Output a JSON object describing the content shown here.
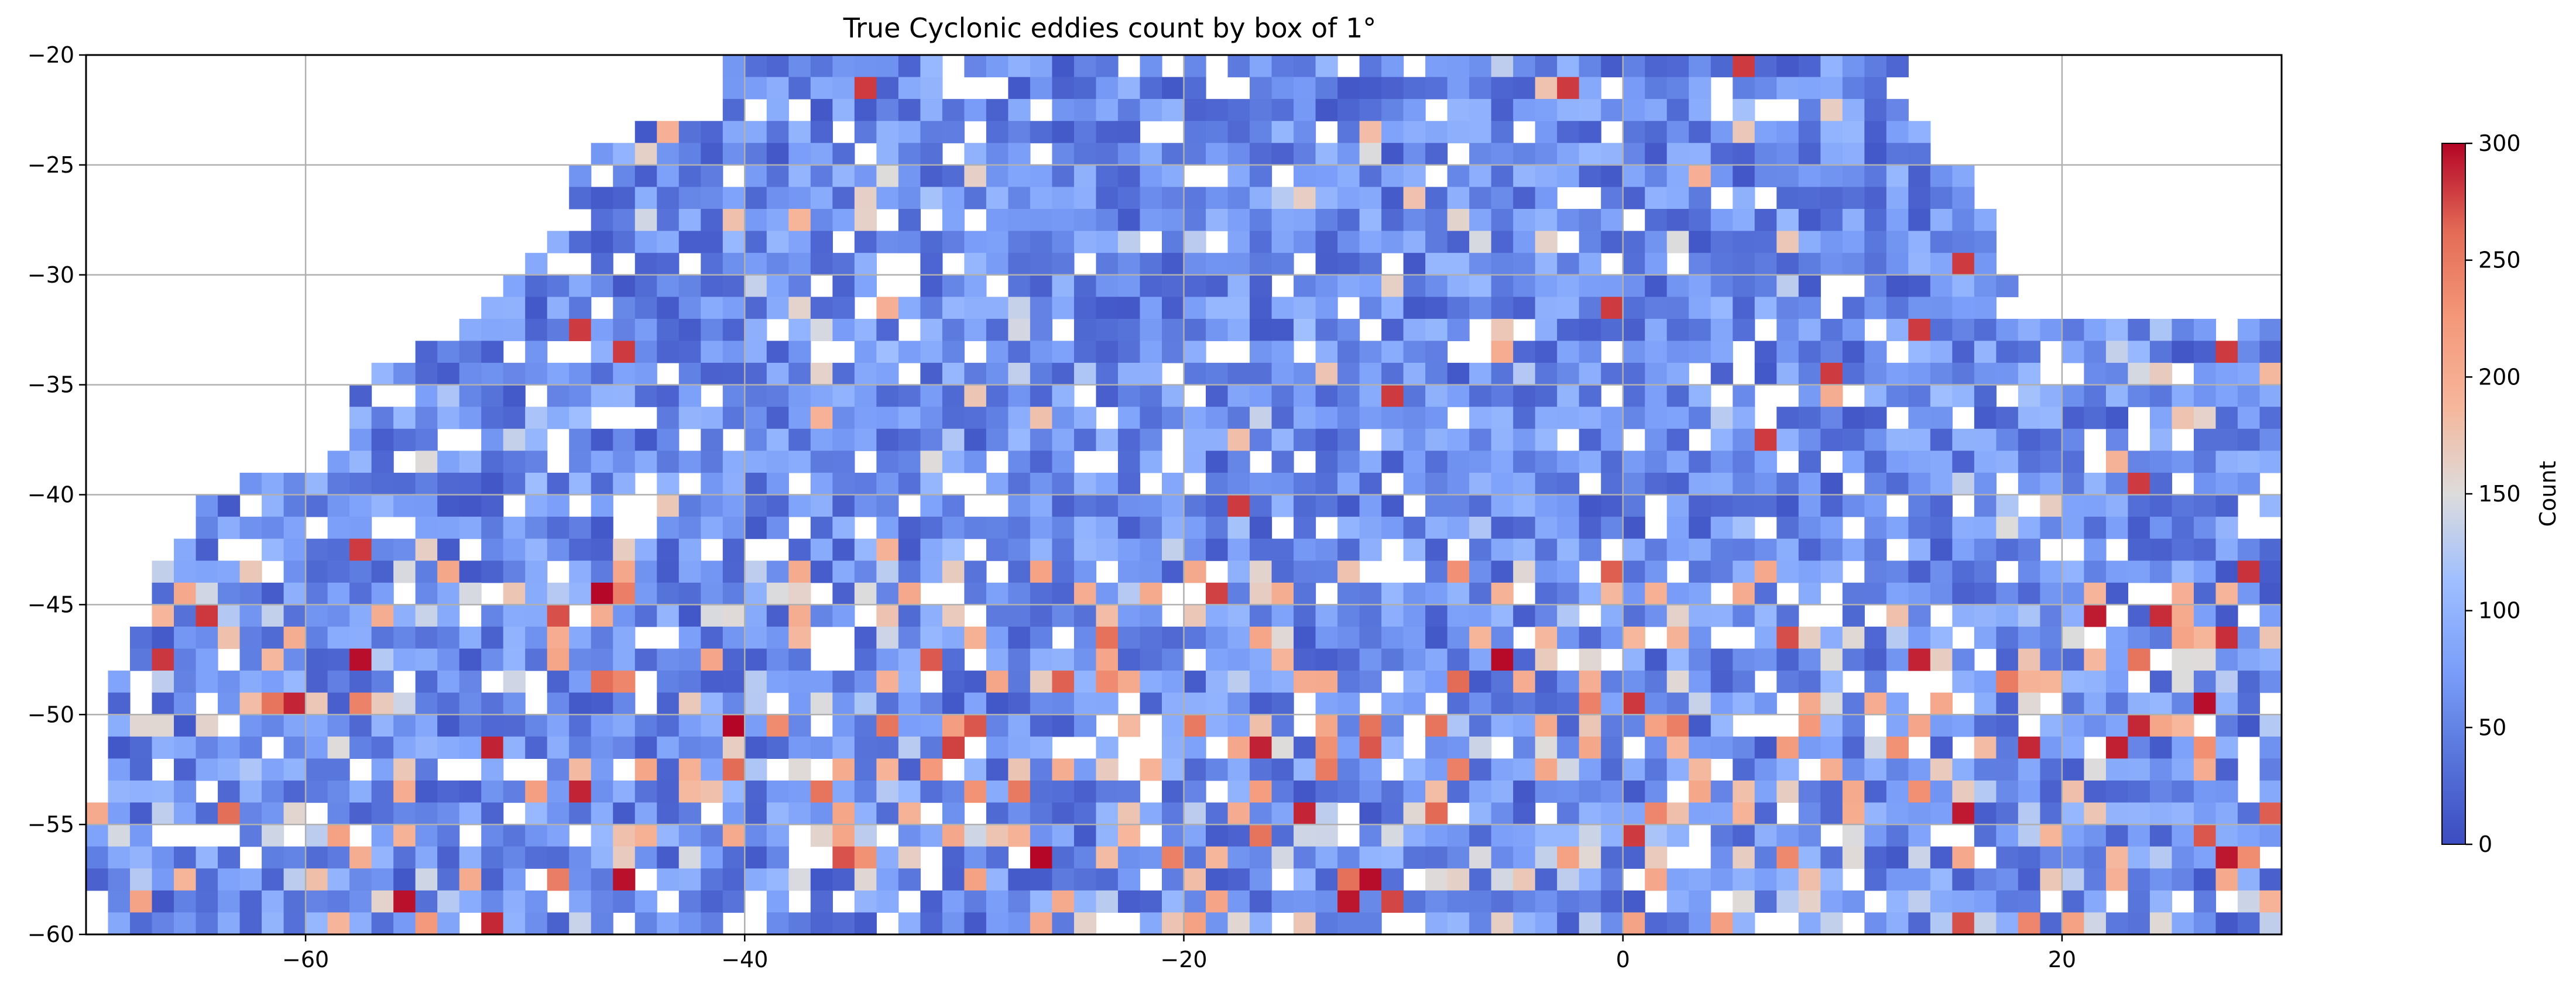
{
  "chart_data": {
    "type": "heatmap",
    "title": "True Cyclonic eddies count by box of 1°",
    "xlabel": "",
    "ylabel": "",
    "xlim": [
      -70,
      30
    ],
    "ylim": [
      -60,
      -20
    ],
    "cell_size_deg": 1,
    "grid": true,
    "x_ticks": [
      {
        "value": -60,
        "label": "−60"
      },
      {
        "value": -40,
        "label": "−40"
      },
      {
        "value": -20,
        "label": "−20"
      },
      {
        "value": 0,
        "label": "0"
      },
      {
        "value": 20,
        "label": "20"
      }
    ],
    "y_ticks": [
      {
        "value": -20,
        "label": "−20"
      },
      {
        "value": -25,
        "label": "−25"
      },
      {
        "value": -30,
        "label": "−30"
      },
      {
        "value": -35,
        "label": "−35"
      },
      {
        "value": -40,
        "label": "−40"
      },
      {
        "value": -45,
        "label": "−45"
      },
      {
        "value": -50,
        "label": "−50"
      },
      {
        "value": -55,
        "label": "−55"
      },
      {
        "value": -60,
        "label": "−60"
      }
    ],
    "colorbar": {
      "label": "Count",
      "vmin": 0,
      "vmax": 300,
      "colormap": "coolwarm",
      "ticks": [
        {
          "value": 0,
          "label": "0"
        },
        {
          "value": 50,
          "label": "50"
        },
        {
          "value": 100,
          "label": "100"
        },
        {
          "value": 150,
          "label": "150"
        },
        {
          "value": 200,
          "label": "200"
        },
        {
          "value": 250,
          "label": "250"
        },
        {
          "value": 300,
          "label": "300"
        }
      ]
    },
    "coverage_rows": [
      {
        "lat": -21,
        "x0": -41,
        "x1": 13
      },
      {
        "lat": -22,
        "x0": -41,
        "x1": 13
      },
      {
        "lat": -23,
        "x0": -41,
        "x1": 13
      },
      {
        "lat": -24,
        "x0": -45,
        "x1": 14
      },
      {
        "lat": -25,
        "x0": -47,
        "x1": 14
      },
      {
        "lat": -26,
        "x0": -48,
        "x1": 16
      },
      {
        "lat": -27,
        "x0": -48,
        "x1": 16
      },
      {
        "lat": -28,
        "x0": -49,
        "x1": 17
      },
      {
        "lat": -29,
        "x0": -49,
        "x1": 17
      },
      {
        "lat": -30,
        "x0": -50,
        "x1": 17
      },
      {
        "lat": -31,
        "x0": -51,
        "x1": 18
      },
      {
        "lat": -32,
        "x0": -52,
        "x1": 18
      },
      {
        "lat": -33,
        "x0": -53,
        "x1": 30
      },
      {
        "lat": -34,
        "x0": -55,
        "x1": 30
      },
      {
        "lat": -35,
        "x0": -57,
        "x1": 30
      },
      {
        "lat": -36,
        "x0": -58,
        "x1": 30
      },
      {
        "lat": -37,
        "x0": -58,
        "x1": 30
      },
      {
        "lat": -38,
        "x0": -58,
        "x1": 30
      },
      {
        "lat": -39,
        "x0": -59,
        "x1": 30
      },
      {
        "lat": -40,
        "x0": -63,
        "x1": 30
      },
      {
        "lat": -41,
        "x0": -65,
        "x1": 30
      },
      {
        "lat": -42,
        "x0": -65,
        "x1": 30
      },
      {
        "lat": -43,
        "x0": -66,
        "x1": 30
      },
      {
        "lat": -44,
        "x0": -67,
        "x1": 30
      },
      {
        "lat": -45,
        "x0": -67,
        "x1": 30
      },
      {
        "lat": -46,
        "x0": -67,
        "x1": 30
      },
      {
        "lat": -47,
        "x0": -68,
        "x1": 30
      },
      {
        "lat": -48,
        "x0": -68,
        "x1": 30
      },
      {
        "lat": -49,
        "x0": -69,
        "x1": 30
      },
      {
        "lat": -50,
        "x0": -69,
        "x1": 30
      },
      {
        "lat": -51,
        "x0": -69,
        "x1": 30
      },
      {
        "lat": -52,
        "x0": -69,
        "x1": 30
      },
      {
        "lat": -53,
        "x0": -69,
        "x1": 30
      },
      {
        "lat": -54,
        "x0": -69,
        "x1": 30
      },
      {
        "lat": -55,
        "x0": -70,
        "x1": 30
      },
      {
        "lat": -56,
        "x0": -70,
        "x1": 30
      },
      {
        "lat": -57,
        "x0": -70,
        "x1": 30
      },
      {
        "lat": -58,
        "x0": -70,
        "x1": 30
      },
      {
        "lat": -59,
        "x0": -70,
        "x1": 30
      },
      {
        "lat": -60,
        "x0": -70,
        "x1": 30
      }
    ],
    "typical_count": 60,
    "max_count": 300,
    "high_count_band_lat": [
      -60,
      -44
    ],
    "missing_cell_fraction": 0.12
  }
}
